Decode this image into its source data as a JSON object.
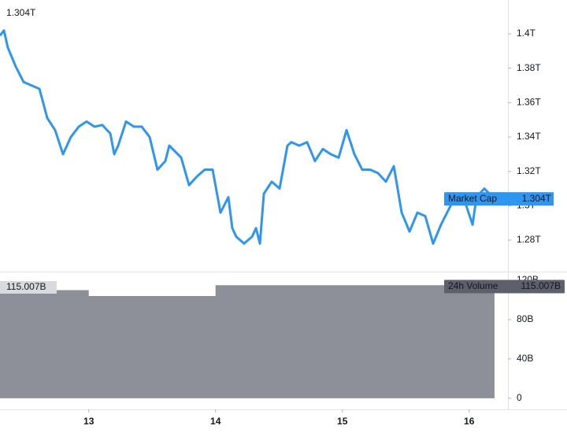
{
  "chart_data": [
    {
      "type": "line",
      "series": [
        {
          "name": "Market Cap",
          "color": "#2f96f0",
          "last_label": "1.304T",
          "x": [
            12.3,
            12.331,
            12.362,
            12.424,
            12.486,
            12.548,
            12.611,
            12.673,
            12.735,
            12.797,
            12.859,
            12.921,
            12.983,
            13.045,
            13.107,
            13.17,
            13.201,
            13.232,
            13.294,
            13.356,
            13.418,
            13.48,
            13.542,
            13.604,
            13.635,
            13.729,
            13.791,
            13.853,
            13.915,
            13.977,
            14.039,
            14.101,
            14.132,
            14.163,
            14.225,
            14.288,
            14.319,
            14.35,
            14.381,
            14.443,
            14.505,
            14.567,
            14.598,
            14.66,
            14.722,
            14.784,
            14.846,
            14.909,
            14.971,
            15.033,
            15.095,
            15.157,
            15.219,
            15.281,
            15.343,
            15.406,
            15.468,
            15.53,
            15.592,
            15.654,
            15.716,
            15.778,
            15.84,
            15.902,
            15.964,
            16.027,
            16.058,
            16.12,
            16.2
          ],
          "values": [
            1.399,
            1.402,
            1.392,
            1.381,
            1.372,
            1.37,
            1.368,
            1.351,
            1.344,
            1.33,
            1.34,
            1.346,
            1.349,
            1.346,
            1.347,
            1.342,
            1.33,
            1.335,
            1.349,
            1.346,
            1.346,
            1.34,
            1.321,
            1.326,
            1.335,
            1.328,
            1.312,
            1.317,
            1.321,
            1.321,
            1.296,
            1.305,
            1.287,
            1.282,
            1.278,
            1.282,
            1.287,
            1.278,
            1.307,
            1.314,
            1.31,
            1.335,
            1.337,
            1.335,
            1.337,
            1.326,
            1.333,
            1.33,
            1.328,
            1.344,
            1.33,
            1.321,
            1.321,
            1.319,
            1.314,
            1.323,
            1.296,
            1.285,
            1.296,
            1.294,
            1.278,
            1.289,
            1.298,
            1.307,
            1.303,
            1.289,
            1.305,
            1.31,
            1.304
          ]
        }
      ],
      "xlim": [
        12.3,
        16.306
      ],
      "ylim": [
        1.2617,
        1.4197
      ],
      "yticks": [
        {
          "value": 1.28,
          "label": "1.28T"
        },
        {
          "value": 1.3,
          "label": "1.3T"
        },
        {
          "value": 1.32,
          "label": "1.32T"
        },
        {
          "value": 1.34,
          "label": "1.34T"
        },
        {
          "value": 1.36,
          "label": "1.36T"
        },
        {
          "value": 1.38,
          "label": "1.38T"
        },
        {
          "value": 1.4,
          "label": "1.4T"
        }
      ]
    },
    {
      "type": "area",
      "series": [
        {
          "name": "24h Volume",
          "color": "#8d9099",
          "last_label": "115.007B",
          "x": [
            12.3,
            13,
            13,
            14,
            14,
            16.2
          ],
          "values": [
            110,
            110,
            104,
            104,
            115.007,
            115.007
          ]
        }
      ],
      "xlim": [
        12.3,
        16.306
      ],
      "ylim": [
        -11.3,
        128
      ],
      "xticks": [
        13,
        14,
        15,
        16
      ],
      "yticks": [
        0,
        {
          "value": 40,
          "label": "40B"
        },
        {
          "value": 80,
          "label": "80B"
        },
        {
          "value": 120,
          "label": "120B"
        }
      ]
    }
  ]
}
